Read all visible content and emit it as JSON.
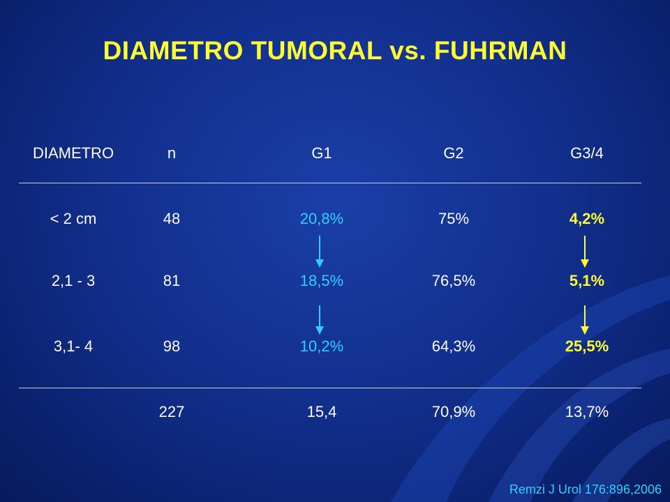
{
  "slide": {
    "title": "DIAMETRO TUMORAL vs. FUHRMAN",
    "citation": "Remzi J Urol 176:896,2006"
  },
  "table": {
    "headers": [
      "DIAMETRO",
      "n",
      "G1",
      "G2",
      "G3/4"
    ],
    "rows": [
      [
        "< 2 cm",
        "48",
        "20,8%",
        "75%",
        "4,2%"
      ],
      [
        "2,1 - 3",
        "81",
        "18,5%",
        "76,5%",
        "5,1%"
      ],
      [
        "3,1-  4",
        "98",
        "10,2%",
        "64,3%",
        "25,5%"
      ]
    ],
    "totals": [
      "",
      "227",
      "15,4",
      "70,9%",
      "13,7%"
    ]
  },
  "colors": {
    "background": "#12308e",
    "title": "#ffff33",
    "text": "#ffffff",
    "g1_highlight": "#2fd0ff",
    "g34_highlight": "#ffff33",
    "citation": "#2fd0ff"
  },
  "icons": [
    "down-arrow-icon"
  ]
}
